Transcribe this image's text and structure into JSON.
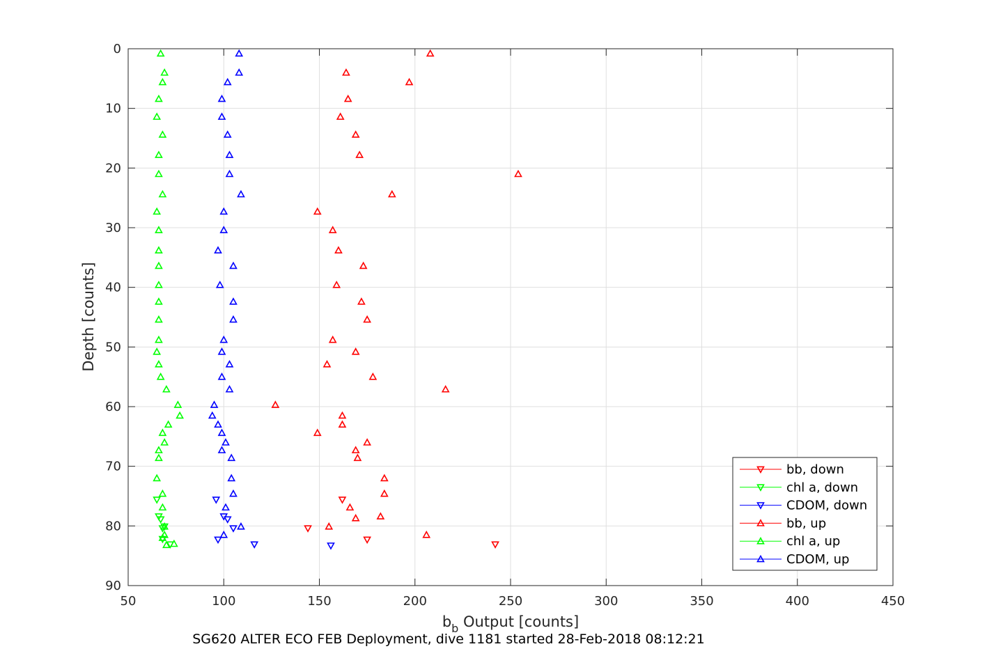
{
  "chart_data": {
    "type": "scatter",
    "xlabel_main": "b",
    "xlabel_sub": "b",
    "xlabel_rest": " Output [counts]",
    "ylabel": "Depth [counts]",
    "caption": "SG620 ALTER ECO FEB Deployment, dive 1181 started 28-Feb-2018 08:12:21",
    "xlim": [
      50,
      450
    ],
    "ylim": [
      0,
      90
    ],
    "y_reversed": true,
    "grid": true,
    "legend_position": "bottom-right",
    "x_ticks": [
      "50",
      "100",
      "150",
      "200",
      "250",
      "300",
      "350",
      "400",
      "450"
    ],
    "y_ticks": [
      "0",
      "10",
      "20",
      "30",
      "40",
      "50",
      "60",
      "70",
      "80",
      "90"
    ],
    "series": [
      {
        "name": "bb, down",
        "color": "#ff0000",
        "marker": "triangle-down",
        "points": [
          [
            144,
            80.4
          ],
          [
            162,
            75.6
          ],
          [
            175,
            82.3
          ],
          [
            242,
            83.1
          ]
        ]
      },
      {
        "name": "chl a, down",
        "color": "#00ff00",
        "marker": "triangle-down",
        "points": [
          [
            65,
            75.6
          ],
          [
            66,
            78.4
          ],
          [
            67,
            78.9
          ],
          [
            68,
            80.4
          ],
          [
            69,
            80.1
          ],
          [
            68,
            82.2
          ],
          [
            72,
            83.1
          ]
        ]
      },
      {
        "name": "CDOM, down",
        "color": "#0000ff",
        "marker": "triangle-down",
        "points": [
          [
            96,
            75.6
          ],
          [
            100,
            78.4
          ],
          [
            102,
            78.9
          ],
          [
            105,
            80.4
          ],
          [
            97,
            82.3
          ],
          [
            116,
            83.1
          ],
          [
            156,
            83.3
          ]
        ]
      },
      {
        "name": "bb, up",
        "color": "#ff0000",
        "marker": "triangle-up",
        "points": [
          [
            208,
            0.8
          ],
          [
            164,
            4.0
          ],
          [
            197,
            5.6
          ],
          [
            165,
            8.4
          ],
          [
            161,
            11.4
          ],
          [
            169,
            14.4
          ],
          [
            171,
            17.8
          ],
          [
            254,
            21.0
          ],
          [
            188,
            24.4
          ],
          [
            149,
            27.3
          ],
          [
            157,
            30.4
          ],
          [
            160,
            33.8
          ],
          [
            173,
            36.4
          ],
          [
            159,
            39.6
          ],
          [
            172,
            42.4
          ],
          [
            175,
            45.4
          ],
          [
            157,
            48.8
          ],
          [
            169,
            50.8
          ],
          [
            154,
            52.9
          ],
          [
            178,
            55.0
          ],
          [
            216,
            57.1
          ],
          [
            127,
            59.7
          ],
          [
            162,
            61.5
          ],
          [
            162,
            63.0
          ],
          [
            149,
            64.4
          ],
          [
            175,
            66.0
          ],
          [
            169,
            67.3
          ],
          [
            170,
            68.6
          ],
          [
            184,
            72.0
          ],
          [
            184,
            74.6
          ],
          [
            166,
            76.9
          ],
          [
            182,
            78.4
          ],
          [
            169,
            78.7
          ],
          [
            155,
            80.1
          ],
          [
            206,
            81.5
          ]
        ]
      },
      {
        "name": "chl a, up",
        "color": "#00ff00",
        "marker": "triangle-up",
        "points": [
          [
            67,
            0.8
          ],
          [
            69,
            4.0
          ],
          [
            68,
            5.6
          ],
          [
            66,
            8.4
          ],
          [
            65,
            11.4
          ],
          [
            68,
            14.4
          ],
          [
            66,
            17.8
          ],
          [
            66,
            21.0
          ],
          [
            68,
            24.4
          ],
          [
            65,
            27.3
          ],
          [
            66,
            30.4
          ],
          [
            66,
            33.8
          ],
          [
            66,
            36.4
          ],
          [
            66,
            39.6
          ],
          [
            66,
            42.4
          ],
          [
            66,
            45.4
          ],
          [
            66,
            48.8
          ],
          [
            65,
            50.8
          ],
          [
            66,
            52.9
          ],
          [
            67,
            55.0
          ],
          [
            70,
            57.1
          ],
          [
            76,
            59.7
          ],
          [
            77,
            61.5
          ],
          [
            71,
            63.0
          ],
          [
            68,
            64.4
          ],
          [
            69,
            66.0
          ],
          [
            66,
            67.3
          ],
          [
            66,
            68.6
          ],
          [
            65,
            72.0
          ],
          [
            68,
            74.6
          ],
          [
            68,
            76.9
          ],
          [
            69,
            80.1
          ],
          [
            69,
            81.5
          ],
          [
            70,
            83.2
          ],
          [
            74,
            83.0
          ],
          [
            68,
            82.0
          ]
        ]
      },
      {
        "name": "CDOM, up",
        "color": "#0000ff",
        "marker": "triangle-up",
        "points": [
          [
            108,
            0.8
          ],
          [
            108,
            4.0
          ],
          [
            102,
            5.6
          ],
          [
            99,
            8.4
          ],
          [
            99,
            11.4
          ],
          [
            102,
            14.4
          ],
          [
            103,
            17.8
          ],
          [
            103,
            21.0
          ],
          [
            109,
            24.4
          ],
          [
            100,
            27.3
          ],
          [
            100,
            30.4
          ],
          [
            97,
            33.8
          ],
          [
            105,
            36.4
          ],
          [
            98,
            39.6
          ],
          [
            105,
            42.4
          ],
          [
            105,
            45.4
          ],
          [
            100,
            48.8
          ],
          [
            99,
            50.8
          ],
          [
            103,
            52.9
          ],
          [
            99,
            55.0
          ],
          [
            103,
            57.1
          ],
          [
            95,
            59.7
          ],
          [
            94,
            61.5
          ],
          [
            97,
            63.0
          ],
          [
            99,
            64.4
          ],
          [
            101,
            66.0
          ],
          [
            99,
            67.3
          ],
          [
            104,
            68.6
          ],
          [
            104,
            72.0
          ],
          [
            105,
            74.6
          ],
          [
            101,
            76.9
          ],
          [
            109,
            80.1
          ],
          [
            100,
            81.5
          ]
        ]
      }
    ]
  }
}
